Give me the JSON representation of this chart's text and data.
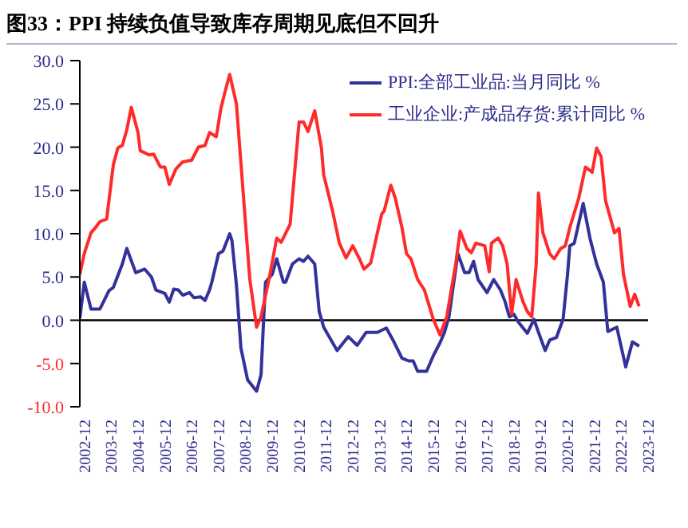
{
  "chart_data": {
    "type": "line",
    "title": "图33：PPI 持续负值导致库存周期见底但不回升",
    "xlim": [
      "2002-12",
      "2024-02"
    ],
    "xticks": [
      "2002-12",
      "2003-12",
      "2004-12",
      "2005-12",
      "2006-12",
      "2007-12",
      "2008-12",
      "2009-12",
      "2010-12",
      "2011-12",
      "2012-12",
      "2013-12",
      "2014-12",
      "2015-12",
      "2016-12",
      "2017-12",
      "2018-12",
      "2019-12",
      "2020-12",
      "2021-12",
      "2022-12",
      "2023-12"
    ],
    "ylim": [
      -10,
      30
    ],
    "yticks": [
      {
        "value": -10,
        "label": "-10.0"
      },
      {
        "value": -5,
        "label": "-5.0"
      },
      {
        "value": 0,
        "label": "0.0"
      },
      {
        "value": 5,
        "label": "5.0"
      },
      {
        "value": 10,
        "label": "10.0"
      },
      {
        "value": 15,
        "label": "15.0"
      },
      {
        "value": 20,
        "label": "20.0"
      },
      {
        "value": 25,
        "label": "25.0"
      },
      {
        "value": 30,
        "label": "30.0"
      }
    ],
    "grid": false,
    "legend": "top right",
    "marker": "none",
    "line_style": "solid",
    "ref_lines": [
      {
        "axis": "y",
        "value": 0,
        "color": "#000000"
      }
    ],
    "series": [
      {
        "name": "PPI:全部工业品:当月同比 %",
        "color": "#33329a",
        "x": [
          "2002-12",
          "2003-02",
          "2003-05",
          "2003-09",
          "2004-01",
          "2004-03",
          "2004-07",
          "2004-09",
          "2005-01",
          "2005-05",
          "2005-08",
          "2005-10",
          "2006-02",
          "2006-04",
          "2006-06",
          "2006-08",
          "2006-10",
          "2007-01",
          "2007-03",
          "2007-06",
          "2007-08",
          "2007-10",
          "2007-11",
          "2008-02",
          "2008-04",
          "2008-07",
          "2008-08",
          "2008-10",
          "2008-12",
          "2009-03",
          "2009-07",
          "2009-09",
          "2009-10",
          "2009-11",
          "2010-02",
          "2010-04",
          "2010-07",
          "2010-08",
          "2010-11",
          "2011-02",
          "2011-04",
          "2011-06",
          "2011-09",
          "2011-11",
          "2012-01",
          "2012-07",
          "2012-12",
          "2013-04",
          "2013-08",
          "2014-01",
          "2014-05",
          "2014-08",
          "2014-12",
          "2015-03",
          "2015-05",
          "2015-07",
          "2015-11",
          "2016-02",
          "2016-05",
          "2016-07",
          "2016-09",
          "2016-11",
          "2017-01",
          "2017-04",
          "2017-06",
          "2017-08",
          "2017-10",
          "2018-02",
          "2018-05",
          "2018-08",
          "2018-10",
          "2018-12",
          "2019-02",
          "2019-04",
          "2019-08",
          "2019-11",
          "2020-01",
          "2020-04",
          "2020-06",
          "2020-09",
          "2020-12",
          "2021-02",
          "2021-03",
          "2021-05",
          "2021-09",
          "2021-12",
          "2022-03",
          "2022-06",
          "2022-08",
          "2022-12",
          "2023-04",
          "2023-07",
          "2023-10"
        ],
        "values": [
          0.2,
          4.4,
          1.3,
          1.3,
          3.4,
          3.8,
          6.5,
          8.3,
          5.5,
          5.9,
          5.0,
          3.5,
          3.1,
          2.1,
          3.6,
          3.5,
          2.9,
          3.2,
          2.6,
          2.7,
          2.3,
          3.5,
          4.4,
          7.7,
          8.0,
          10.0,
          9.2,
          4.1,
          -3.2,
          -6.9,
          -8.2,
          -6.3,
          -0.8,
          4.4,
          5.3,
          7.1,
          4.4,
          4.4,
          6.5,
          7.1,
          6.8,
          7.4,
          6.5,
          1.0,
          -0.8,
          -3.5,
          -1.9,
          -2.9,
          -1.4,
          -1.4,
          -0.9,
          -2.3,
          -4.4,
          -4.7,
          -4.7,
          -5.9,
          -5.9,
          -4.1,
          -2.6,
          -1.4,
          0.4,
          4.1,
          7.7,
          5.5,
          5.5,
          6.8,
          4.7,
          3.2,
          4.7,
          3.5,
          2.2,
          0.4,
          0.7,
          -0.2,
          -1.5,
          0.1,
          -1.4,
          -3.5,
          -2.3,
          -2.0,
          0.1,
          5.3,
          8.6,
          8.9,
          13.5,
          9.5,
          6.5,
          4.4,
          -1.3,
          -0.8,
          -5.4,
          -2.5,
          -3.0
        ]
      },
      {
        "name": "工业企业:产成品存货:累计同比 %",
        "color": "#ff2b2b",
        "x": [
          "2002-12",
          "2003-02",
          "2003-05",
          "2003-07",
          "2003-09",
          "2003-12",
          "2004-01",
          "2004-03",
          "2004-05",
          "2004-07",
          "2004-09",
          "2004-11",
          "2005-02",
          "2005-03",
          "2005-07",
          "2005-09",
          "2005-12",
          "2006-02",
          "2006-04",
          "2006-07",
          "2006-10",
          "2007-02",
          "2007-05",
          "2007-08",
          "2007-10",
          "2008-01",
          "2008-03",
          "2008-05",
          "2008-07",
          "2008-10",
          "2009-02",
          "2009-04",
          "2009-07",
          "2009-09",
          "2010-01",
          "2010-04",
          "2010-06",
          "2010-10",
          "2011-02",
          "2011-04",
          "2011-06",
          "2011-09",
          "2011-12",
          "2012-01",
          "2012-05",
          "2012-08",
          "2012-11",
          "2013-02",
          "2013-05",
          "2013-07",
          "2013-10",
          "2014-01",
          "2014-03",
          "2014-04",
          "2014-07",
          "2014-09",
          "2014-12",
          "2015-02",
          "2015-04",
          "2015-07",
          "2015-10",
          "2016-02",
          "2016-05",
          "2016-08",
          "2016-12",
          "2017-02",
          "2017-05",
          "2017-07",
          "2017-09",
          "2018-01",
          "2018-03",
          "2018-04",
          "2018-07",
          "2018-09",
          "2018-11",
          "2019-01",
          "2019-03",
          "2019-06",
          "2019-08",
          "2019-10",
          "2019-12",
          "2020-01",
          "2020-03",
          "2020-06",
          "2020-08",
          "2020-11",
          "2021-01",
          "2021-03",
          "2021-07",
          "2021-10",
          "2022-01",
          "2022-03",
          "2022-05",
          "2022-07",
          "2022-11",
          "2023-01",
          "2023-03",
          "2023-06",
          "2023-08",
          "2023-10"
        ],
        "values": [
          5.3,
          7.7,
          10.1,
          10.7,
          11.4,
          11.7,
          13.8,
          18.0,
          19.9,
          20.2,
          22.0,
          24.6,
          21.7,
          19.6,
          19.1,
          19.2,
          17.7,
          17.7,
          15.7,
          17.5,
          18.3,
          18.5,
          20.0,
          20.2,
          21.7,
          21.2,
          24.4,
          26.5,
          28.4,
          25.0,
          11.4,
          4.7,
          -0.8,
          0.4,
          5.3,
          9.5,
          9.0,
          11.1,
          22.9,
          22.9,
          21.8,
          24.2,
          19.9,
          16.8,
          12.6,
          8.9,
          7.2,
          8.6,
          7.1,
          5.9,
          6.6,
          10.1,
          12.3,
          12.6,
          15.6,
          14.1,
          10.7,
          7.7,
          7.1,
          4.7,
          3.5,
          0.1,
          -1.7,
          0.4,
          6.5,
          10.3,
          8.3,
          7.8,
          8.9,
          8.6,
          5.6,
          8.9,
          9.5,
          8.6,
          6.5,
          0.7,
          4.7,
          2.2,
          1.0,
          0.4,
          6.5,
          14.7,
          10.1,
          7.7,
          7.1,
          8.3,
          8.6,
          10.7,
          14.1,
          17.7,
          17.1,
          19.9,
          18.9,
          13.8,
          10.1,
          10.6,
          5.3,
          1.6,
          3.0,
          1.6
        ]
      }
    ]
  }
}
